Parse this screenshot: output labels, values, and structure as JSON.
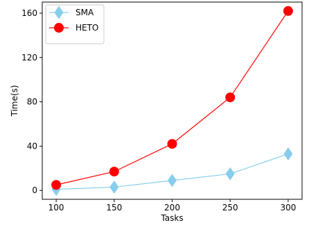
{
  "chart_data": {
    "type": "line",
    "xlabel": "Tasks",
    "ylabel": "Time(s)",
    "x": [
      100,
      150,
      200,
      250,
      300
    ],
    "xlim": [
      88,
      312
    ],
    "ylim": [
      -8,
      170
    ],
    "xticks": [
      100,
      150,
      200,
      250,
      300
    ],
    "yticks": [
      0,
      40,
      80,
      120,
      160
    ],
    "grid": false,
    "legend_position": "top-left",
    "series": [
      {
        "name": "SMA",
        "values": [
          1,
          3,
          9,
          15,
          33
        ],
        "color": "#87ceeb",
        "marker": "diamond"
      },
      {
        "name": "HETO",
        "values": [
          5,
          17,
          42,
          84,
          162
        ],
        "color": "#ff0000",
        "marker": "circle"
      }
    ]
  }
}
